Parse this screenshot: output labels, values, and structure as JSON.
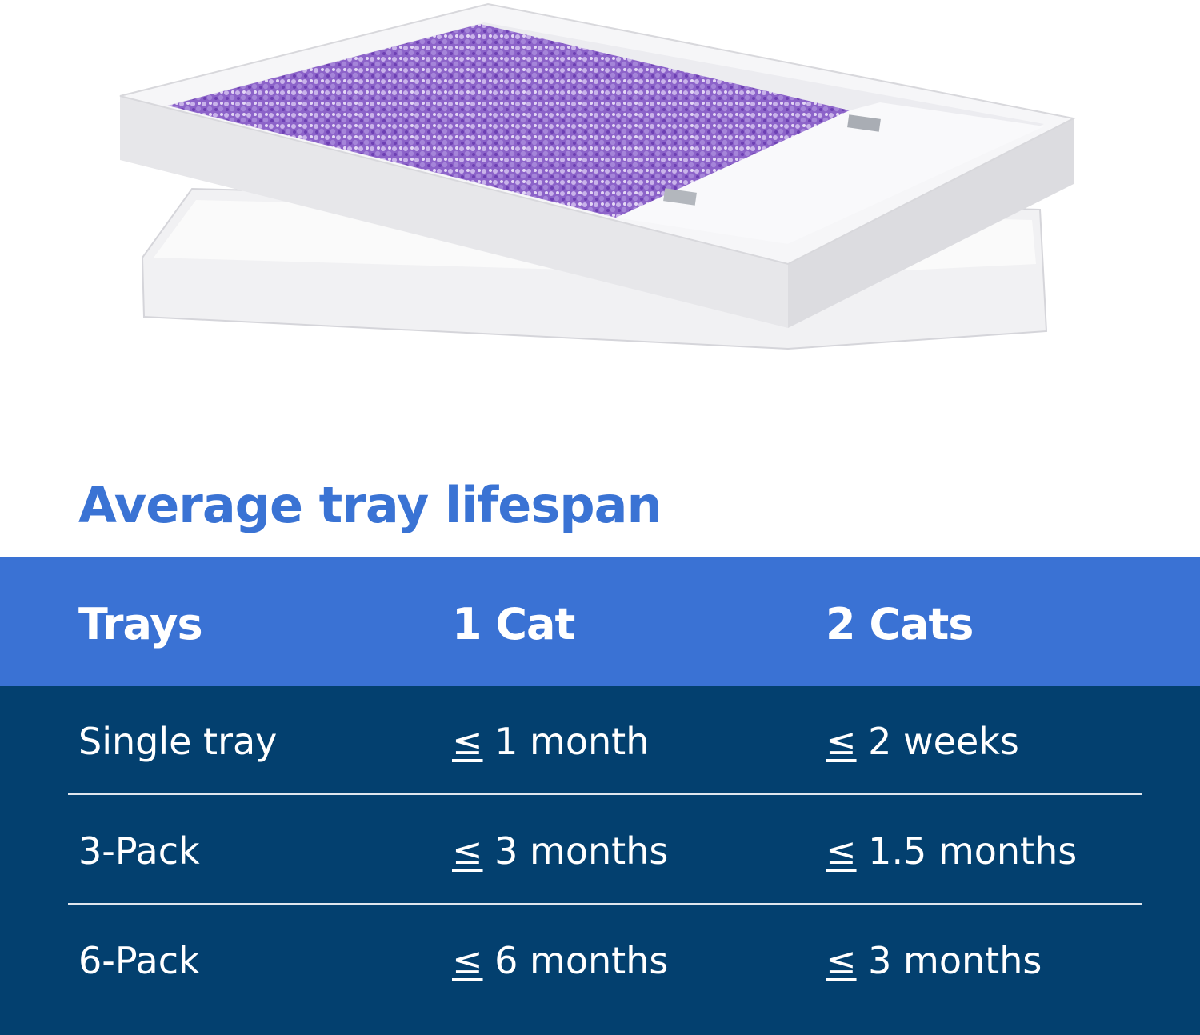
{
  "title": "Average tray lifespan",
  "colors": {
    "title": "#3a73d4",
    "header_band": "#3a72d4",
    "body_band": "#03406f",
    "litter": "#8a5cc8"
  },
  "illustration": {
    "icon": "litter-tray-image"
  },
  "table": {
    "headers": [
      "Trays",
      "1 Cat",
      "2 Cats"
    ],
    "rows": [
      {
        "tray": "Single tray",
        "one_cat": {
          "symbol": "≤",
          "value": "1 month"
        },
        "two_cats": {
          "symbol": "≤",
          "value": "2 weeks"
        }
      },
      {
        "tray": "3-Pack",
        "one_cat": {
          "symbol": "≤",
          "value": "3 months"
        },
        "two_cats": {
          "symbol": "≤",
          "value": "1.5 months"
        }
      },
      {
        "tray": "6-Pack",
        "one_cat": {
          "symbol": "≤",
          "value": "6 months"
        },
        "two_cats": {
          "symbol": "≤",
          "value": "3 months"
        }
      }
    ]
  }
}
